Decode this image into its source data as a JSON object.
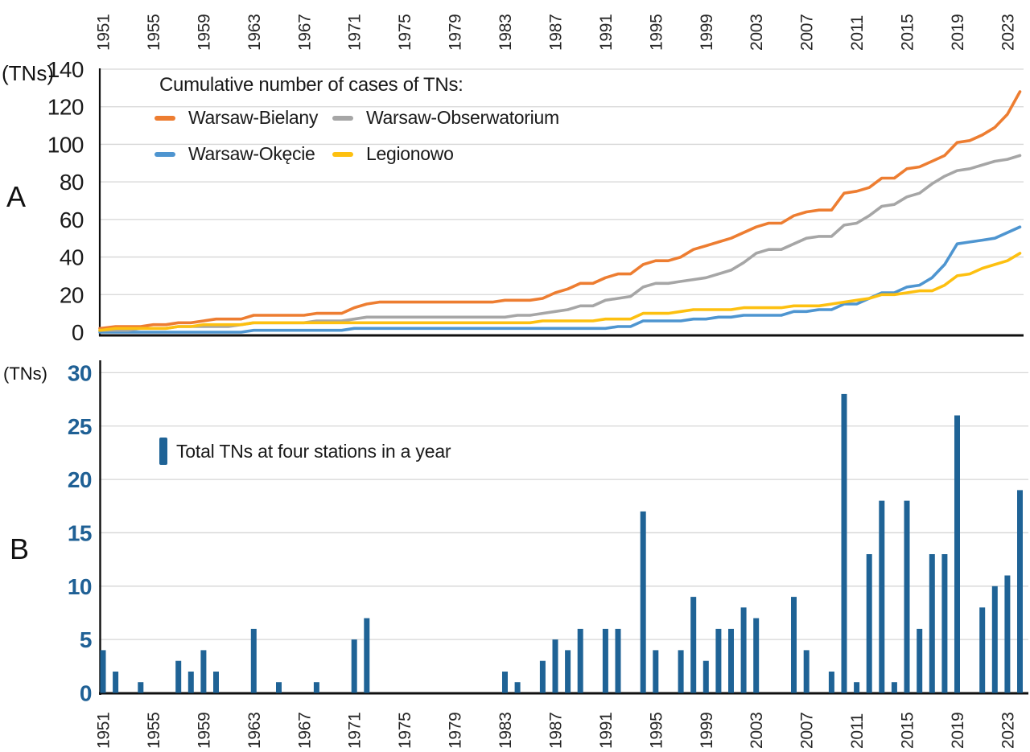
{
  "figure": {
    "panel_a": {
      "label": "A",
      "unit": "(TNs)"
    },
    "panel_b": {
      "label": "B",
      "unit": "(TNs)"
    }
  },
  "chart_data": [
    {
      "type": "line",
      "title": "Cumulative number of cases of TNs:",
      "ylabel": "(TNs)",
      "ylim": [
        0,
        140
      ],
      "y_ticks": [
        0,
        20,
        40,
        60,
        80,
        100,
        120,
        140
      ],
      "x_start": 1951,
      "x_end": 2024,
      "x_tick_years": [
        1951,
        1955,
        1959,
        1963,
        1967,
        1971,
        1975,
        1979,
        1983,
        1987,
        1991,
        1995,
        1999,
        2003,
        2007,
        2011,
        2015,
        2019,
        2023
      ],
      "grid": true,
      "legend_position": "top-left-inside",
      "series": [
        {
          "name": "Warsaw-Bielany",
          "color": "#ED7D31",
          "values": [
            2,
            3,
            3,
            3,
            4,
            4,
            5,
            5,
            6,
            7,
            7,
            7,
            9,
            9,
            9,
            9,
            9,
            10,
            10,
            10,
            13,
            15,
            16,
            16,
            16,
            16,
            16,
            16,
            16,
            16,
            16,
            16,
            17,
            17,
            17,
            18,
            21,
            23,
            26,
            26,
            29,
            31,
            31,
            36,
            38,
            38,
            40,
            44,
            46,
            48,
            50,
            53,
            56,
            58,
            58,
            62,
            64,
            65,
            65,
            74,
            75,
            77,
            82,
            82,
            87,
            88,
            91,
            94,
            101,
            102,
            105,
            109,
            116,
            128
          ]
        },
        {
          "name": "Warsaw-Obserwatorium",
          "color": "#A6A6A6",
          "values": [
            1,
            1,
            1,
            2,
            2,
            2,
            3,
            3,
            3,
            3,
            3,
            4,
            5,
            5,
            5,
            5,
            5,
            6,
            6,
            6,
            7,
            8,
            8,
            8,
            8,
            8,
            8,
            8,
            8,
            8,
            8,
            8,
            8,
            9,
            9,
            10,
            11,
            12,
            14,
            14,
            17,
            18,
            19,
            24,
            26,
            26,
            27,
            28,
            29,
            31,
            33,
            37,
            42,
            44,
            44,
            47,
            50,
            51,
            51,
            57,
            58,
            62,
            67,
            68,
            72,
            74,
            79,
            83,
            86,
            87,
            89,
            91,
            92,
            94
          ]
        },
        {
          "name": "Warsaw-Okęcie",
          "color": "#4E95D0",
          "values": [
            0,
            0,
            0,
            0,
            0,
            0,
            0,
            0,
            0,
            0,
            0,
            0,
            1,
            1,
            1,
            1,
            1,
            1,
            1,
            1,
            2,
            2,
            2,
            2,
            2,
            2,
            2,
            2,
            2,
            2,
            2,
            2,
            2,
            2,
            2,
            2,
            2,
            2,
            2,
            2,
            2,
            3,
            3,
            6,
            6,
            6,
            6,
            7,
            7,
            8,
            8,
            9,
            9,
            9,
            9,
            11,
            11,
            12,
            12,
            15,
            15,
            18,
            21,
            21,
            24,
            25,
            29,
            36,
            47,
            48,
            49,
            50,
            53,
            56
          ]
        },
        {
          "name": "Legionowo",
          "color": "#FDC010",
          "values": [
            1,
            2,
            2,
            2,
            2,
            2,
            3,
            3,
            4,
            4,
            4,
            4,
            5,
            5,
            5,
            5,
            5,
            5,
            5,
            5,
            5,
            5,
            5,
            5,
            5,
            5,
            5,
            5,
            5,
            5,
            5,
            5,
            5,
            5,
            5,
            6,
            6,
            6,
            6,
            6,
            7,
            7,
            7,
            10,
            10,
            10,
            11,
            12,
            12,
            12,
            12,
            13,
            13,
            13,
            13,
            14,
            14,
            14,
            15,
            16,
            17,
            18,
            20,
            20,
            21,
            22,
            22,
            25,
            30,
            31,
            34,
            36,
            38,
            42
          ]
        }
      ]
    },
    {
      "type": "bar",
      "legend": "Total TNs at four stations in a year",
      "ylabel": "(TNs)",
      "ylim": [
        0,
        30
      ],
      "y_ticks": [
        0,
        5,
        10,
        15,
        20,
        25,
        30
      ],
      "x_start": 1951,
      "x_end": 2024,
      "x_tick_years": [
        1951,
        1955,
        1959,
        1963,
        1967,
        1971,
        1975,
        1979,
        1983,
        1987,
        1991,
        1995,
        1999,
        2003,
        2007,
        2011,
        2015,
        2019,
        2023
      ],
      "grid": true,
      "bar_color": "#1F6396",
      "tick_label_color": "#1F6095",
      "values": [
        4,
        2,
        0,
        1,
        0,
        0,
        3,
        2,
        4,
        2,
        0,
        0,
        6,
        0,
        1,
        0,
        0,
        1,
        0,
        0,
        5,
        7,
        0,
        0,
        0,
        0,
        0,
        0,
        0,
        0,
        0,
        0,
        2,
        1,
        0,
        3,
        5,
        4,
        6,
        0,
        6,
        6,
        0,
        17,
        4,
        0,
        4,
        9,
        3,
        6,
        6,
        8,
        7,
        0,
        0,
        9,
        4,
        0,
        2,
        28,
        1,
        13,
        18,
        1,
        18,
        6,
        13,
        13,
        26,
        0,
        8,
        10,
        11,
        19
      ]
    }
  ]
}
